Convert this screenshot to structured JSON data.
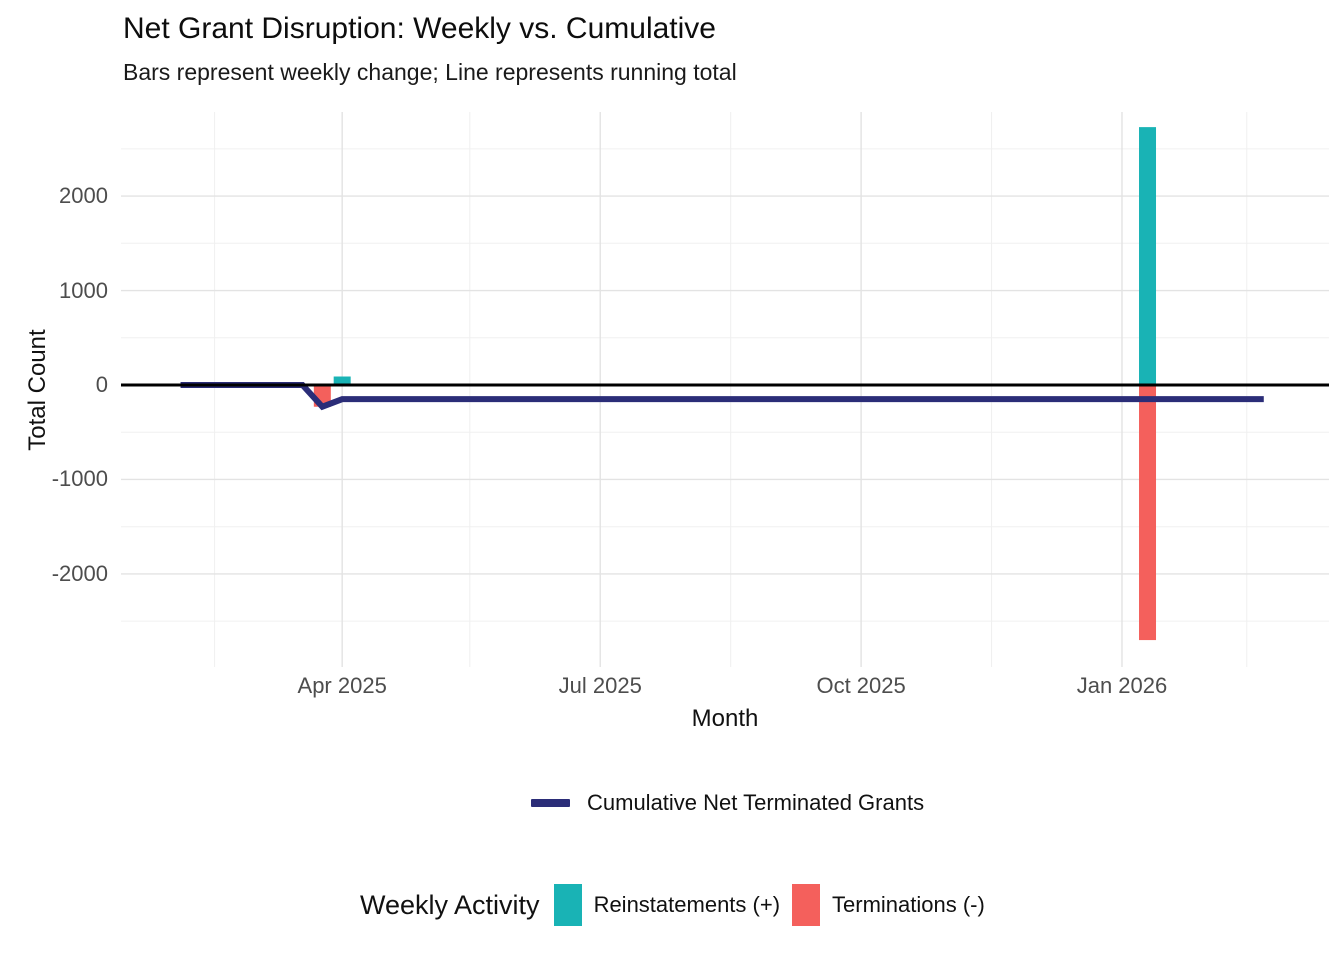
{
  "title": "Net Grant Disruption: Weekly vs. Cumulative",
  "subtitle": "Bars represent weekly change; Line represents running total",
  "axes": {
    "x": {
      "label": "Month",
      "domain": [
        "2025-01-13",
        "2026-03-15"
      ],
      "major_ticks": [
        {
          "date": "2025-04-01",
          "label": "Apr 2025"
        },
        {
          "date": "2025-07-01",
          "label": "Jul 2025"
        },
        {
          "date": "2025-10-01",
          "label": "Oct 2025"
        },
        {
          "date": "2026-01-01",
          "label": "Jan 2026"
        }
      ],
      "minor_ticks": [
        "2025-02-15",
        "2025-05-16",
        "2025-08-16",
        "2025-11-16",
        "2026-02-14"
      ]
    },
    "y": {
      "label": "Total Count",
      "domain": [
        -2985,
        2890
      ],
      "major_ticks": [
        2000,
        1000,
        0,
        -1000,
        -2000
      ],
      "minor_ticks": [
        2500,
        1500,
        500,
        -500,
        -1500,
        -2500
      ]
    }
  },
  "chart_data": {
    "type": "bar+line",
    "title": "Net Grant Disruption: Weekly vs. Cumulative",
    "subtitle": "Bars represent weekly change; Line represents running total",
    "xlabel": "Month",
    "ylabel": "Total Count",
    "x_tick_labels": [
      "Apr 2025",
      "Jul 2025",
      "Oct 2025",
      "Jan 2026"
    ],
    "y_tick_labels": [
      2000,
      1000,
      0,
      -1000,
      -2000
    ],
    "ylim": [
      -2985,
      2890
    ],
    "grid": true,
    "legend_position": "bottom",
    "zero_line": 0,
    "series": [
      {
        "name": "Reinstatements (+)",
        "type": "bar",
        "color": "#19b3b5",
        "points": [
          {
            "x": "2025-04-01",
            "y": 90
          },
          {
            "x": "2026-01-10",
            "y": 2730
          }
        ]
      },
      {
        "name": "Terminations (-)",
        "type": "bar",
        "color": "#f4605c",
        "points": [
          {
            "x": "2025-03-25",
            "y": -230
          },
          {
            "x": "2026-01-10",
            "y": -2700
          }
        ]
      },
      {
        "name": "Cumulative Net Terminated Grants",
        "type": "line",
        "color": "#2b2d78",
        "points": [
          {
            "x": "2025-02-03",
            "y": 0
          },
          {
            "x": "2025-03-18",
            "y": 0
          },
          {
            "x": "2025-03-25",
            "y": -230
          },
          {
            "x": "2025-04-01",
            "y": -150
          },
          {
            "x": "2026-02-20",
            "y": -150
          }
        ]
      }
    ]
  },
  "legends": {
    "cumulative": {
      "label": "Cumulative Net Terminated Grants",
      "color": "#2b2d78"
    },
    "weekly": {
      "title": "Weekly Activity",
      "items": [
        {
          "label": "Reinstatements (+)",
          "color": "#19b3b5"
        },
        {
          "label": "Terminations (-)",
          "color": "#f4605c"
        }
      ]
    }
  },
  "colors": {
    "teal": "#19b3b5",
    "red": "#f4605c",
    "navy": "#2b2d78",
    "zero_line": "#000000",
    "grid_major": "#e3e3e3",
    "grid_minor": "#f0f0f0",
    "tick_label": "#4d4d4d",
    "text": "#111111"
  }
}
